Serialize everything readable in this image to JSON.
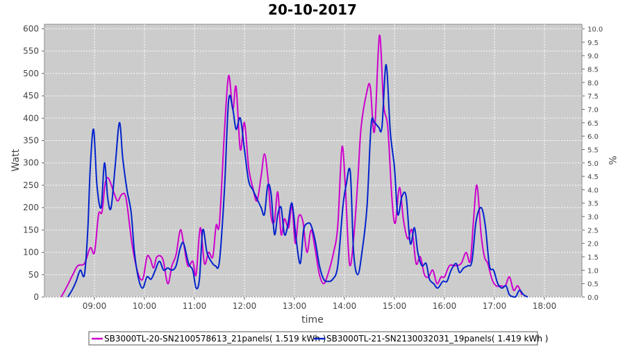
{
  "chart_data": {
    "type": "line",
    "title": "20-10-2017",
    "xlabel": "time",
    "ylabel": "Watt",
    "ylabel_right": "%",
    "x_ticks": [
      "09:00",
      "10:00",
      "11:00",
      "12:00",
      "13:00",
      "14:00",
      "15:00",
      "16:00",
      "17:00",
      "18:00"
    ],
    "x_range": [
      "08:00",
      "18:45"
    ],
    "ylim": [
      0,
      610
    ],
    "y_ticks": [
      0,
      50,
      100,
      150,
      200,
      250,
      300,
      350,
      400,
      450,
      500,
      550,
      600
    ],
    "ylim_right": [
      0,
      10.17
    ],
    "y_ticks_right": [
      "0.0",
      "0.5",
      "1.0",
      "1.5",
      "2.0",
      "2.5",
      "3.0",
      "3.5",
      "4.0",
      "4.5",
      "5.0",
      "5.5",
      "6.0",
      "6.5",
      "7.0",
      "7.5",
      "8.0",
      "8.5",
      "9.0",
      "9.5",
      "10.0"
    ],
    "grid": true,
    "legend_position": "bottom",
    "colors": {
      "plot_bg": "#cccccc",
      "series1": "#cc00cc",
      "series2": "#0022cc"
    },
    "series": [
      {
        "name": "SB3000TL-20-SN2100578613_21panels( 1.519 kWh )",
        "color": "#cc00cc",
        "points": [
          [
            "08:20",
            0
          ],
          [
            "08:26",
            20
          ],
          [
            "08:34",
            50
          ],
          [
            "08:40",
            70
          ],
          [
            "08:48",
            75
          ],
          [
            "08:55",
            110
          ],
          [
            "09:00",
            100
          ],
          [
            "09:05",
            185
          ],
          [
            "09:09",
            190
          ],
          [
            "09:13",
            255
          ],
          [
            "09:17",
            265
          ],
          [
            "09:24",
            230
          ],
          [
            "09:28",
            215
          ],
          [
            "09:33",
            230
          ],
          [
            "09:38",
            220
          ],
          [
            "09:45",
            120
          ],
          [
            "09:52",
            55
          ],
          [
            "09:58",
            40
          ],
          [
            "10:03",
            90
          ],
          [
            "10:07",
            85
          ],
          [
            "10:11",
            65
          ],
          [
            "10:15",
            90
          ],
          [
            "10:22",
            85
          ],
          [
            "10:28",
            30
          ],
          [
            "10:33",
            70
          ],
          [
            "10:38",
            95
          ],
          [
            "10:43",
            150
          ],
          [
            "10:47",
            120
          ],
          [
            "10:52",
            70
          ],
          [
            "10:58",
            80
          ],
          [
            "11:02",
            50
          ],
          [
            "11:07",
            155
          ],
          [
            "11:12",
            75
          ],
          [
            "11:17",
            100
          ],
          [
            "11:22",
            90
          ],
          [
            "11:26",
            160
          ],
          [
            "11:30",
            165
          ],
          [
            "11:36",
            370
          ],
          [
            "11:41",
            495
          ],
          [
            "11:46",
            420
          ],
          [
            "11:50",
            470
          ],
          [
            "11:55",
            330
          ],
          [
            "12:00",
            390
          ],
          [
            "12:05",
            290
          ],
          [
            "12:10",
            245
          ],
          [
            "12:15",
            215
          ],
          [
            "12:20",
            270
          ],
          [
            "12:24",
            320
          ],
          [
            "12:28",
            270
          ],
          [
            "12:32",
            180
          ],
          [
            "12:36",
            170
          ],
          [
            "12:40",
            235
          ],
          [
            "12:44",
            140
          ],
          [
            "12:48",
            175
          ],
          [
            "12:53",
            155
          ],
          [
            "12:57",
            205
          ],
          [
            "13:01",
            120
          ],
          [
            "13:05",
            180
          ],
          [
            "13:10",
            170
          ],
          [
            "13:15",
            100
          ],
          [
            "13:20",
            150
          ],
          [
            "13:25",
            105
          ],
          [
            "13:30",
            50
          ],
          [
            "13:35",
            30
          ],
          [
            "13:40",
            50
          ],
          [
            "13:47",
            100
          ],
          [
            "13:52",
            160
          ],
          [
            "13:57",
            335
          ],
          [
            "14:01",
            250
          ],
          [
            "14:06",
            75
          ],
          [
            "14:11",
            130
          ],
          [
            "14:16",
            260
          ],
          [
            "14:20",
            380
          ],
          [
            "14:27",
            460
          ],
          [
            "14:31",
            470
          ],
          [
            "14:36",
            370
          ],
          [
            "14:42",
            585
          ],
          [
            "14:47",
            430
          ],
          [
            "14:52",
            380
          ],
          [
            "14:57",
            220
          ],
          [
            "15:01",
            165
          ],
          [
            "15:06",
            245
          ],
          [
            "15:11",
            170
          ],
          [
            "15:16",
            130
          ],
          [
            "15:21",
            150
          ],
          [
            "15:26",
            75
          ],
          [
            "15:31",
            90
          ],
          [
            "15:36",
            50
          ],
          [
            "15:41",
            45
          ],
          [
            "15:46",
            60
          ],
          [
            "15:51",
            30
          ],
          [
            "15:56",
            45
          ],
          [
            "16:00",
            45
          ],
          [
            "16:06",
            70
          ],
          [
            "16:13",
            70
          ],
          [
            "16:20",
            75
          ],
          [
            "16:26",
            100
          ],
          [
            "16:31",
            80
          ],
          [
            "16:35",
            175
          ],
          [
            "16:39",
            250
          ],
          [
            "16:44",
            140
          ],
          [
            "16:48",
            90
          ],
          [
            "16:52",
            75
          ],
          [
            "16:57",
            40
          ],
          [
            "17:02",
            25
          ],
          [
            "17:08",
            25
          ],
          [
            "17:13",
            25
          ],
          [
            "17:18",
            45
          ],
          [
            "17:23",
            15
          ],
          [
            "17:28",
            25
          ],
          [
            "17:33",
            5
          ]
        ]
      },
      {
        "name": "SB3000TL-21-SN2130032031_19panels( 1.419 kWh )",
        "color": "#0022cc",
        "points": [
          [
            "08:28",
            0
          ],
          [
            "08:33",
            15
          ],
          [
            "08:38",
            35
          ],
          [
            "08:43",
            60
          ],
          [
            "08:48",
            50
          ],
          [
            "08:52",
            150
          ],
          [
            "08:55",
            290
          ],
          [
            "08:59",
            375
          ],
          [
            "09:03",
            250
          ],
          [
            "09:08",
            200
          ],
          [
            "09:12",
            300
          ],
          [
            "09:16",
            220
          ],
          [
            "09:20",
            200
          ],
          [
            "09:25",
            295
          ],
          [
            "09:30",
            390
          ],
          [
            "09:34",
            310
          ],
          [
            "09:39",
            240
          ],
          [
            "09:44",
            190
          ],
          [
            "09:48",
            100
          ],
          [
            "09:53",
            40
          ],
          [
            "09:58",
            20
          ],
          [
            "10:03",
            45
          ],
          [
            "10:08",
            40
          ],
          [
            "10:13",
            60
          ],
          [
            "10:18",
            80
          ],
          [
            "10:23",
            60
          ],
          [
            "10:28",
            65
          ],
          [
            "10:33",
            60
          ],
          [
            "10:38",
            70
          ],
          [
            "10:43",
            110
          ],
          [
            "10:47",
            120
          ],
          [
            "10:53",
            75
          ],
          [
            "10:58",
            60
          ],
          [
            "11:02",
            20
          ],
          [
            "11:06",
            40
          ],
          [
            "11:10",
            150
          ],
          [
            "11:15",
            100
          ],
          [
            "11:20",
            80
          ],
          [
            "11:25",
            70
          ],
          [
            "11:30",
            80
          ],
          [
            "11:36",
            240
          ],
          [
            "11:41",
            440
          ],
          [
            "11:46",
            420
          ],
          [
            "11:50",
            375
          ],
          [
            "11:55",
            400
          ],
          [
            "12:00",
            330
          ],
          [
            "12:05",
            260
          ],
          [
            "12:10",
            240
          ],
          [
            "12:15",
            220
          ],
          [
            "12:20",
            200
          ],
          [
            "12:24",
            185
          ],
          [
            "12:28",
            250
          ],
          [
            "12:32",
            230
          ],
          [
            "12:36",
            140
          ],
          [
            "12:40",
            185
          ],
          [
            "12:44",
            200
          ],
          [
            "12:48",
            140
          ],
          [
            "12:52",
            160
          ],
          [
            "12:57",
            210
          ],
          [
            "13:02",
            130
          ],
          [
            "13:07",
            75
          ],
          [
            "13:11",
            150
          ],
          [
            "13:16",
            165
          ],
          [
            "13:20",
            160
          ],
          [
            "13:25",
            125
          ],
          [
            "13:30",
            70
          ],
          [
            "13:35",
            40
          ],
          [
            "13:40",
            35
          ],
          [
            "13:46",
            40
          ],
          [
            "13:52",
            70
          ],
          [
            "13:58",
            200
          ],
          [
            "14:02",
            250
          ],
          [
            "14:07",
            280
          ],
          [
            "14:11",
            100
          ],
          [
            "14:16",
            50
          ],
          [
            "14:21",
            100
          ],
          [
            "14:27",
            200
          ],
          [
            "14:32",
            385
          ],
          [
            "14:36",
            390
          ],
          [
            "14:41",
            380
          ],
          [
            "14:45",
            380
          ],
          [
            "14:50",
            520
          ],
          [
            "14:55",
            370
          ],
          [
            "15:00",
            290
          ],
          [
            "15:04",
            185
          ],
          [
            "15:09",
            225
          ],
          [
            "15:14",
            225
          ],
          [
            "15:19",
            120
          ],
          [
            "15:24",
            155
          ],
          [
            "15:28",
            100
          ],
          [
            "15:33",
            70
          ],
          [
            "15:38",
            75
          ],
          [
            "15:42",
            40
          ],
          [
            "15:47",
            30
          ],
          [
            "15:52",
            20
          ],
          [
            "15:58",
            35
          ],
          [
            "16:03",
            35
          ],
          [
            "16:08",
            60
          ],
          [
            "16:14",
            75
          ],
          [
            "16:18",
            55
          ],
          [
            "16:23",
            65
          ],
          [
            "16:28",
            70
          ],
          [
            "16:33",
            80
          ],
          [
            "16:38",
            170
          ],
          [
            "16:44",
            200
          ],
          [
            "16:49",
            160
          ],
          [
            "16:54",
            70
          ],
          [
            "16:59",
            60
          ],
          [
            "17:04",
            30
          ],
          [
            "17:09",
            20
          ],
          [
            "17:14",
            25
          ],
          [
            "17:18",
            5
          ],
          [
            "17:25",
            0
          ],
          [
            "17:30",
            15
          ],
          [
            "17:35",
            5
          ],
          [
            "17:40",
            0
          ]
        ]
      }
    ]
  }
}
